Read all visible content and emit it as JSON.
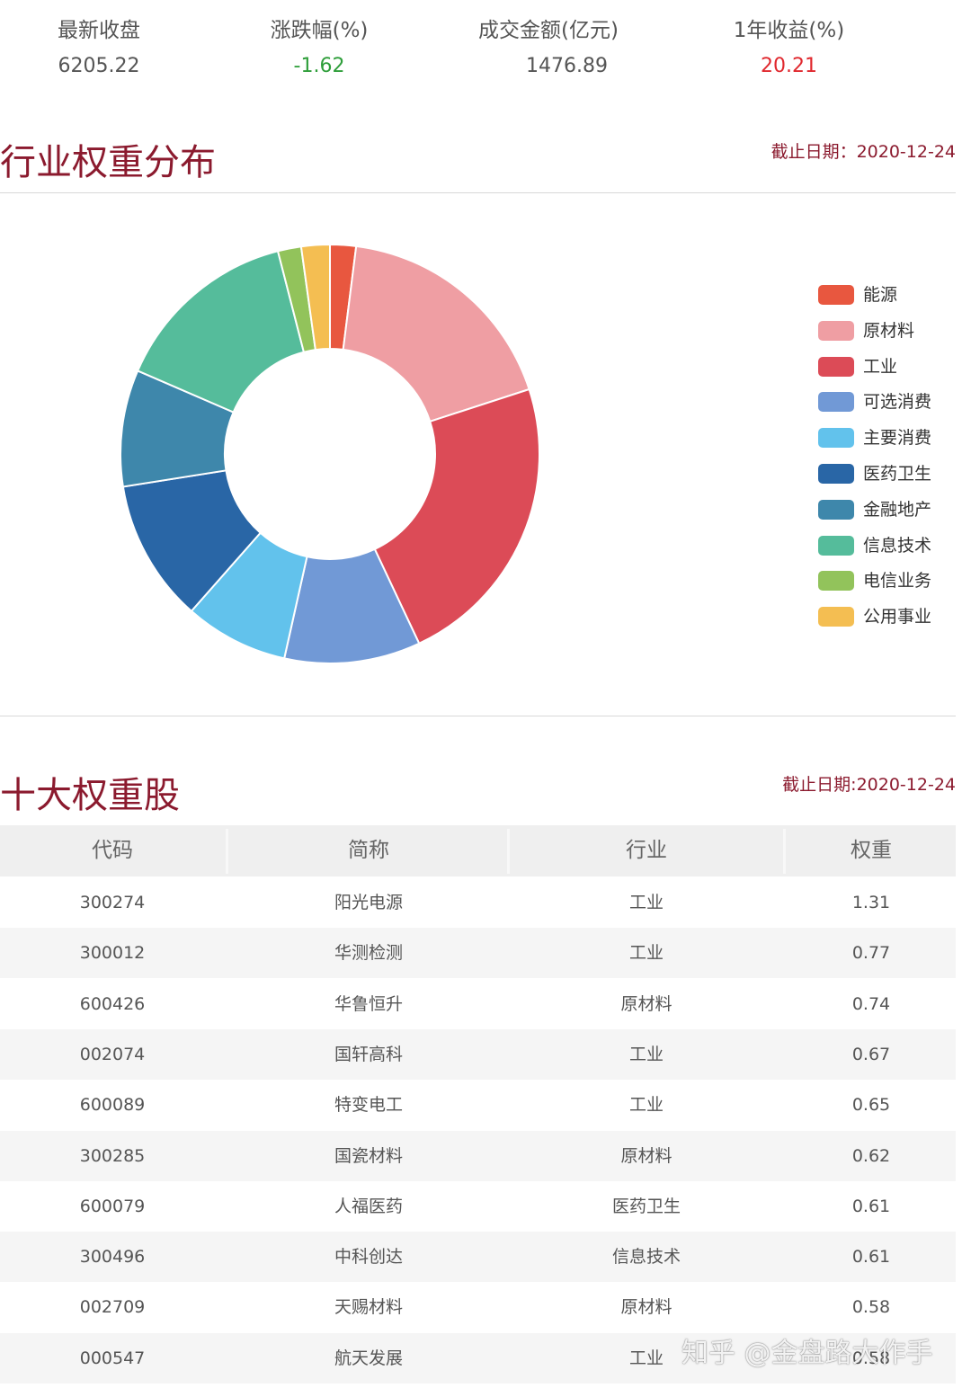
{
  "stats": [
    {
      "label": "最新收盘",
      "value": "6205.22",
      "color": "#555555"
    },
    {
      "label": "涨跌幅(%)",
      "value": "-1.62",
      "color": "#2e9e3a"
    },
    {
      "label": "成交金额(亿元)",
      "value": "1476.89",
      "color": "#555555"
    },
    {
      "label": "1年收益(%)",
      "value": "20.21",
      "color": "#e0282e"
    }
  ],
  "industry": {
    "title": "行业权重分布",
    "date": "截止日期：2020-12-24"
  },
  "chart_data": {
    "type": "pie",
    "donut": true,
    "categories": [
      "能源",
      "原材料",
      "工业",
      "可选消费",
      "主要消费",
      "医药卫生",
      "金融地产",
      "信息技术",
      "电信业务",
      "公用事业"
    ],
    "values": [
      2.0,
      18.0,
      23.0,
      10.5,
      8.0,
      11.0,
      9.0,
      14.5,
      1.8,
      2.2
    ],
    "colors": [
      "#e8573f",
      "#ef9ea3",
      "#dc4b57",
      "#7199d6",
      "#62c2ec",
      "#2966a6",
      "#3e87ab",
      "#55bc9b",
      "#92c35b",
      "#f4be52"
    ],
    "legend_position": "right"
  },
  "top10": {
    "title": "十大权重股",
    "date": "截止日期:2020-12-24",
    "headers": [
      "代码",
      "简称",
      "行业",
      "权重"
    ],
    "rows": [
      [
        "300274",
        "阳光电源",
        "工业",
        "1.31"
      ],
      [
        "300012",
        "华测检测",
        "工业",
        "0.77"
      ],
      [
        "600426",
        "华鲁恒升",
        "原材料",
        "0.74"
      ],
      [
        "002074",
        "国轩高科",
        "工业",
        "0.67"
      ],
      [
        "600089",
        "特变电工",
        "工业",
        "0.65"
      ],
      [
        "300285",
        "国瓷材料",
        "原材料",
        "0.62"
      ],
      [
        "600079",
        "人福医药",
        "医药卫生",
        "0.61"
      ],
      [
        "300496",
        "中科创达",
        "信息技术",
        "0.61"
      ],
      [
        "002709",
        "天赐材料",
        "原材料",
        "0.58"
      ],
      [
        "000547",
        "航天发展",
        "工业",
        "0.58"
      ]
    ]
  },
  "watermark": "知乎 @金盘路大作手"
}
